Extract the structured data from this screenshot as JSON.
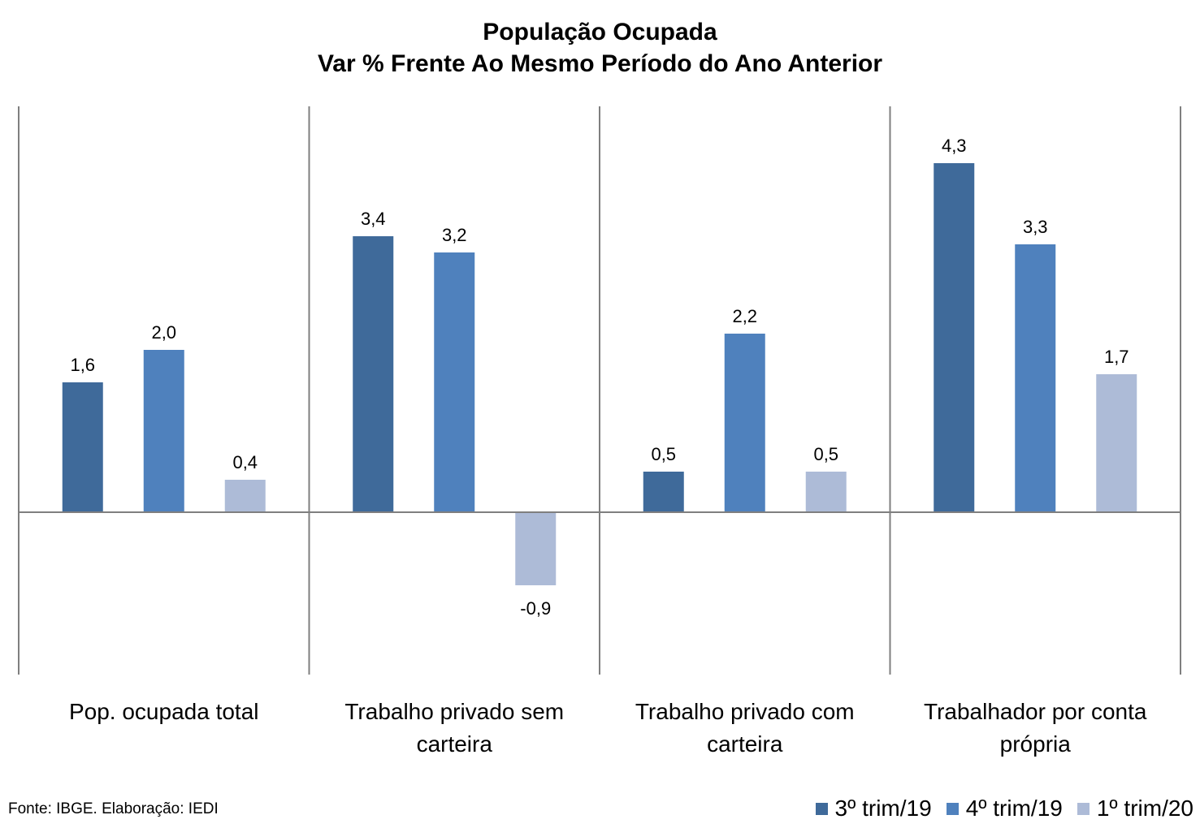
{
  "chart_data": {
    "type": "bar",
    "title": "População Ocupada",
    "subtitle": "Var % Frente Ao Mesmo Período do Ano Anterior",
    "categories": [
      [
        "Pop. ocupada total"
      ],
      [
        "Trabalho privado sem",
        "carteira"
      ],
      [
        "Trabalho privado com",
        "carteira"
      ],
      [
        "Trabalhador por conta",
        "própria"
      ]
    ],
    "series": [
      {
        "name": "3º trim/19",
        "color": "#3f6a9a",
        "values": [
          1.6,
          3.4,
          0.5,
          4.3
        ],
        "labels": [
          "1,6",
          "3,4",
          "0,5",
          "4,3"
        ]
      },
      {
        "name": "4º trim/19",
        "color": "#4f81bd",
        "values": [
          2.0,
          3.2,
          2.2,
          3.3
        ],
        "labels": [
          "2,0",
          "3,2",
          "2,2",
          "3,3"
        ]
      },
      {
        "name": "1º trim/20",
        "color": "#adbbd7",
        "values": [
          0.4,
          -0.9,
          0.5,
          1.7
        ],
        "labels": [
          "0,4",
          "-0,9",
          "0,5",
          "1,7"
        ]
      }
    ],
    "ylim": [
      -2.0,
      5.0
    ],
    "grid": false,
    "legend_position": "bottom-right"
  },
  "source": "Fonte: IBGE. Elaboração: IEDI"
}
